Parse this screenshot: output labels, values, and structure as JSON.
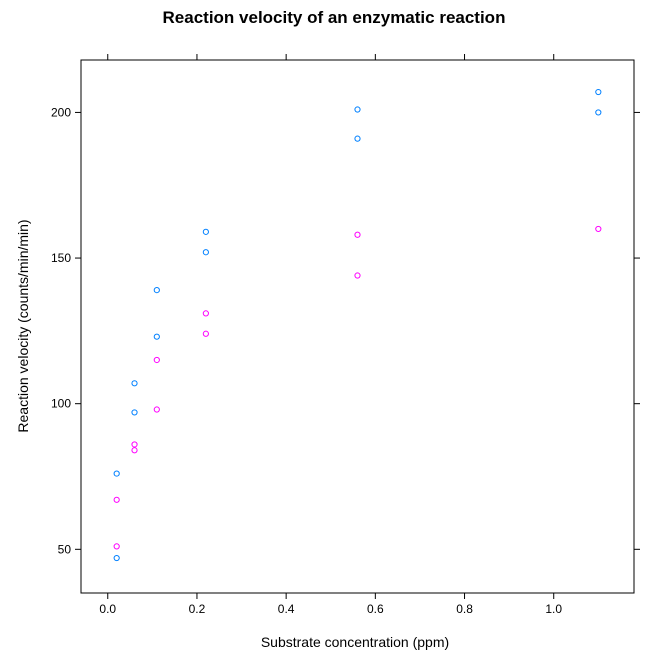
{
  "chart_data": {
    "type": "scatter",
    "title": "Reaction velocity of an enzymatic reaction",
    "xlabel": "Substrate concentration (ppm)",
    "ylabel": "Reaction velocity (counts/min/min)",
    "xlim": [
      -0.06,
      1.18
    ],
    "ylim": [
      35,
      218
    ],
    "xticks": [
      0.0,
      0.2,
      0.4,
      0.6,
      0.8,
      1.0
    ],
    "xtick_labels": [
      "0.0",
      "0.2",
      "0.4",
      "0.6",
      "0.8",
      "1.0"
    ],
    "yticks": [
      50,
      100,
      150,
      200
    ],
    "ytick_labels": [
      "50",
      "100",
      "150",
      "200"
    ],
    "grid": false,
    "legend": "none",
    "marker": "circle",
    "series": [
      {
        "color": "#0080ff",
        "x": [
          0.02,
          0.02,
          0.06,
          0.06,
          0.11,
          0.11,
          0.22,
          0.22,
          0.56,
          0.56,
          1.1,
          1.1
        ],
        "y": [
          76,
          47,
          97,
          107,
          123,
          139,
          159,
          152,
          191,
          201,
          207,
          200
        ]
      },
      {
        "color": "#ff00ff",
        "x": [
          0.02,
          0.02,
          0.06,
          0.06,
          0.11,
          0.11,
          0.22,
          0.22,
          0.56,
          0.56,
          1.1
        ],
        "y": [
          67,
          51,
          84,
          86,
          98,
          115,
          131,
          124,
          144,
          158,
          160
        ]
      }
    ]
  }
}
